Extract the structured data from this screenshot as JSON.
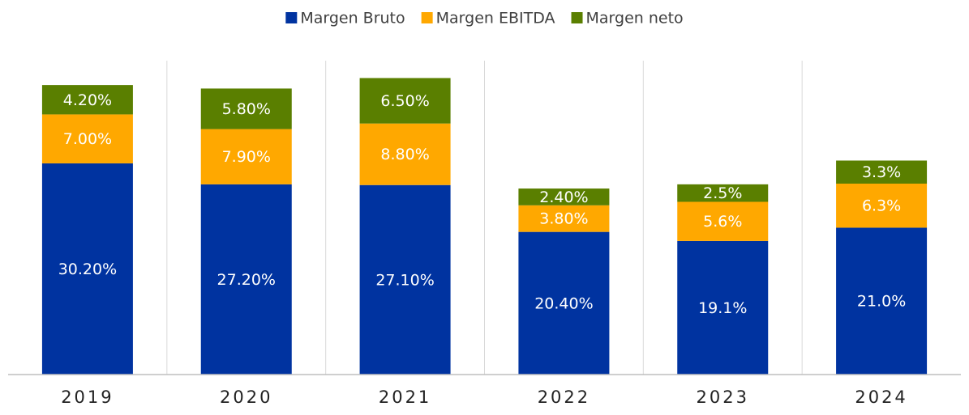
{
  "chart_data": {
    "type": "stacked_bar",
    "categories": [
      "2019",
      "2020",
      "2021",
      "2022",
      "2023",
      "2024"
    ],
    "series": [
      {
        "name": "Margen Bruto",
        "color": "#0033a0",
        "values": [
          30.2,
          27.2,
          27.1,
          20.4,
          19.1,
          21.0
        ],
        "value_labels": [
          "30.20%",
          "27.20%",
          "27.10%",
          "20.40%",
          "19.1%",
          "21.0%"
        ]
      },
      {
        "name": "Margen EBITDA",
        "color": "#ffa800",
        "values": [
          7.0,
          7.9,
          8.8,
          3.8,
          5.6,
          6.3
        ],
        "value_labels": [
          "7.00%",
          "7.90%",
          "8.80%",
          "3.80%",
          "5.6%",
          "6.3%"
        ]
      },
      {
        "name": "Margen neto",
        "color": "#5a7f00",
        "values": [
          4.2,
          5.8,
          6.5,
          2.4,
          2.5,
          3.3
        ],
        "value_labels": [
          "4.20%",
          "5.80%",
          "6.50%",
          "2.40%",
          "2.5%",
          "3.3%"
        ]
      }
    ],
    "ylim": [
      0,
      45
    ],
    "legend": "top"
  }
}
